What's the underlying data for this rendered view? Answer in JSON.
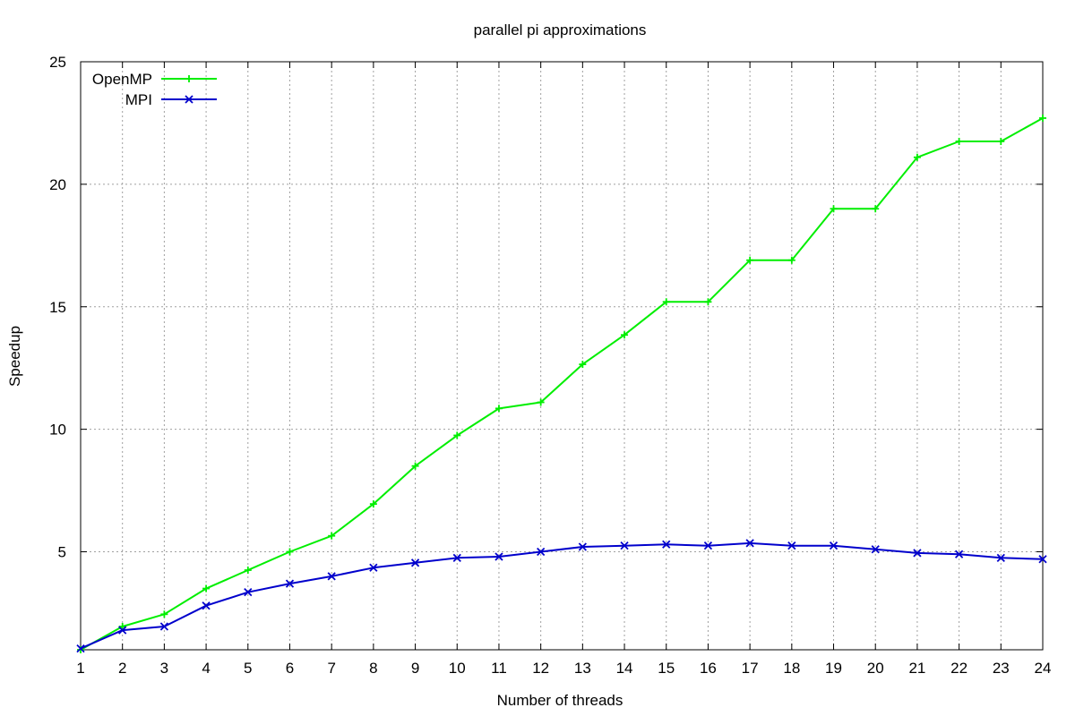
{
  "chart_data": {
    "type": "line",
    "title": "parallel pi approximations",
    "xlabel": "Number of threads",
    "ylabel": "Speedup",
    "xlim": [
      1,
      24
    ],
    "ylim": [
      1,
      25
    ],
    "x_ticks": [
      1,
      2,
      3,
      4,
      5,
      6,
      7,
      8,
      9,
      10,
      11,
      12,
      13,
      14,
      15,
      16,
      17,
      18,
      19,
      20,
      21,
      22,
      23,
      24
    ],
    "y_ticks": [
      5,
      10,
      15,
      20,
      25
    ],
    "grid": true,
    "legend_position": "top-left",
    "x": [
      1,
      2,
      3,
      4,
      5,
      6,
      7,
      8,
      9,
      10,
      11,
      12,
      13,
      14,
      15,
      16,
      17,
      18,
      19,
      20,
      21,
      22,
      23,
      24
    ],
    "series": [
      {
        "name": "OpenMP",
        "color": "#00ee00",
        "marker": "plus",
        "values": [
          1.0,
          1.95,
          2.45,
          3.5,
          4.25,
          5.0,
          5.65,
          6.95,
          8.5,
          9.75,
          10.85,
          11.1,
          12.65,
          13.85,
          15.2,
          15.2,
          16.9,
          16.9,
          19.0,
          19.0,
          21.1,
          21.75,
          21.75,
          22.7
        ]
      },
      {
        "name": "MPI",
        "color": "#0000cc",
        "marker": "cross",
        "values": [
          1.05,
          1.8,
          1.95,
          2.8,
          3.35,
          3.7,
          4.0,
          4.35,
          4.55,
          4.75,
          4.8,
          5.0,
          5.2,
          5.25,
          5.3,
          5.25,
          5.35,
          5.25,
          5.25,
          5.1,
          4.95,
          4.9,
          4.75,
          4.7
        ]
      }
    ]
  }
}
